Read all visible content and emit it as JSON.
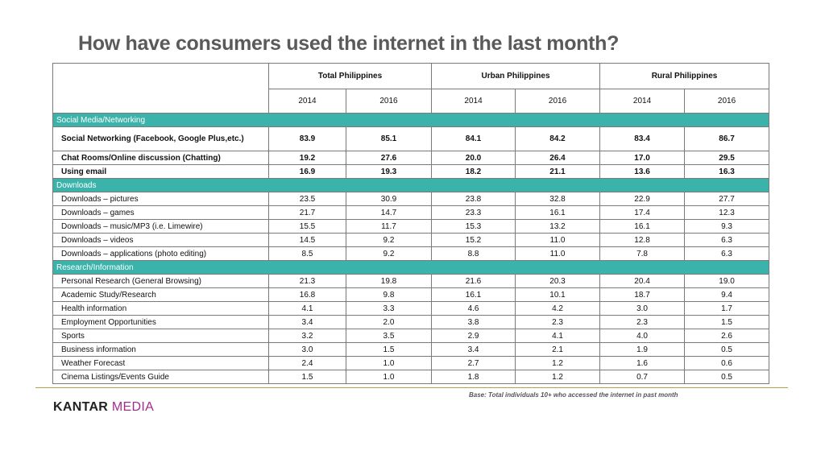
{
  "title": "How have consumers used the internet in the last month?",
  "regions": [
    "Total Philippines",
    "Urban Philippines",
    "Rural Philippines"
  ],
  "years": [
    "2014",
    "2016",
    "2014",
    "2016",
    "2014",
    "2016"
  ],
  "sections": [
    {
      "name": "Social Media/Networking",
      "rows": [
        {
          "label": "Social Networking (Facebook, Google Plus,etc.)",
          "values": [
            "83.9",
            "85.1",
            "84.1",
            "84.2",
            "83.4",
            "86.7"
          ]
        },
        {
          "label": "Chat Rooms/Online discussion (Chatting)",
          "values": [
            "19.2",
            "27.6",
            "20.0",
            "26.4",
            "17.0",
            "29.5"
          ]
        },
        {
          "label": "Using email",
          "values": [
            "16.9",
            "19.3",
            "18.2",
            "21.1",
            "13.6",
            "16.3"
          ]
        }
      ]
    },
    {
      "name": "Downloads",
      "rows": [
        {
          "label": "Downloads – pictures",
          "values": [
            "23.5",
            "30.9",
            "23.8",
            "32.8",
            "22.9",
            "27.7"
          ]
        },
        {
          "label": "Downloads – games",
          "values": [
            "21.7",
            "14.7",
            "23.3",
            "16.1",
            "17.4",
            "12.3"
          ]
        },
        {
          "label": "Downloads – music/MP3 (i.e. Limewire)",
          "values": [
            "15.5",
            "11.7",
            "15.3",
            "13.2",
            "16.1",
            "9.3"
          ]
        },
        {
          "label": "Downloads – videos",
          "values": [
            "14.5",
            "9.2",
            "15.2",
            "11.0",
            "12.8",
            "6.3"
          ]
        },
        {
          "label": "Downloads – applications (photo editing)",
          "values": [
            "8.5",
            "9.2",
            "8.8",
            "11.0",
            "7.8",
            "6.3"
          ]
        }
      ]
    },
    {
      "name": "Research/Information",
      "rows": [
        {
          "label": "Personal Research (General Browsing)",
          "values": [
            "21.3",
            "19.8",
            "21.6",
            "20.3",
            "20.4",
            "19.0"
          ]
        },
        {
          "label": "Academic Study/Research",
          "values": [
            "16.8",
            "9.8",
            "16.1",
            "10.1",
            "18.7",
            "9.4"
          ]
        },
        {
          "label": "Health information",
          "values": [
            "4.1",
            "3.3",
            "4.6",
            "4.2",
            "3.0",
            "1.7"
          ]
        },
        {
          "label": "Employment Opportunities",
          "values": [
            "3.4",
            "2.0",
            "3.8",
            "2.3",
            "2.3",
            "1.5"
          ]
        },
        {
          "label": "Sports",
          "values": [
            "3.2",
            "3.5",
            "2.9",
            "4.1",
            "4.0",
            "2.6"
          ]
        },
        {
          "label": "Business information",
          "values": [
            "3.0",
            "1.5",
            "3.4",
            "2.1",
            "1.9",
            "0.5"
          ]
        },
        {
          "label": "Weather Forecast",
          "values": [
            "2.4",
            "1.0",
            "2.7",
            "1.2",
            "1.6",
            "0.6"
          ]
        },
        {
          "label": "Cinema Listings/Events Guide",
          "values": [
            "1.5",
            "1.0",
            "1.8",
            "1.2",
            "0.7",
            "0.5"
          ]
        }
      ]
    }
  ],
  "footer": {
    "base_note": "Base: Total individuals 10+ who accessed the internet in past month",
    "logo_part1": "KANTAR",
    "logo_part2": "MEDIA"
  }
}
